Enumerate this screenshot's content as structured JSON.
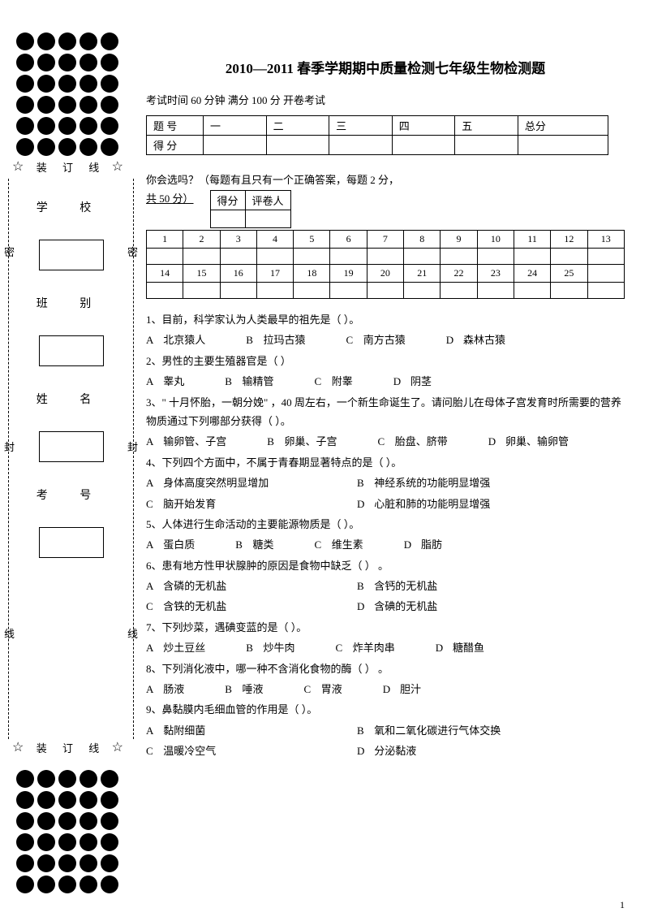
{
  "dots": {
    "rows": 6,
    "cols": 5
  },
  "binding": {
    "star": "☆",
    "text": "装  订  线"
  },
  "side": {
    "labels": [
      "学  校",
      "班  别",
      "姓  名",
      "考  号"
    ],
    "edge": {
      "mi": "密",
      "feng": "封",
      "xian": "线"
    }
  },
  "title": "2010—2011 春季学期期中质量检测七年级生物检测题",
  "exam_info": "考试时间 60  分钟  满分 100  分 开卷考试",
  "score_headers": [
    "题  号",
    "一",
    "二",
    "三",
    "四",
    "五",
    "总分"
  ],
  "score_row2": "得  分",
  "section_intro_l1": "你会选吗？（每题有且只有一个正确答案，每题      2 分，",
  "section_intro_l2": "共 50 分）",
  "subhead": [
    "得分",
    "评卷人"
  ],
  "ans_rows": [
    [
      "1",
      "2",
      "3",
      "4",
      "5",
      "6",
      "7",
      "8",
      "9",
      "10",
      "11",
      "12",
      "13"
    ],
    [
      "14",
      "15",
      "16",
      "17",
      "18",
      "19",
      "20",
      "21",
      "22",
      "23",
      "24",
      "25",
      ""
    ]
  ],
  "questions": [
    {
      "q": "1、目前，科学家认为人类最早的祖先是（        ）。",
      "opts": [
        [
          "A",
          "北京猿人"
        ],
        [
          "B",
          "拉玛古猿"
        ],
        [
          "C",
          "南方古猿"
        ],
        [
          "D",
          "森林古猿"
        ]
      ]
    },
    {
      "q": "2、男性的主要生殖器官是（        ）",
      "opts": [
        [
          "A",
          "睾丸"
        ],
        [
          "B",
          "输精管"
        ],
        [
          "C",
          "附睾"
        ],
        [
          "D",
          "阴茎"
        ]
      ]
    },
    {
      "q": "3、\" 十月怀胎，一朝分娩\" ，40 周左右，一个新生命诞生了。请问胎儿在母体子宫发育时所需要的营养物质通过下列哪部分获得（        ）。",
      "opts": [
        [
          "A",
          "输卵管、子宫"
        ],
        [
          "B",
          "卵巢、子宫"
        ],
        [
          "C",
          "胎盘、脐带"
        ],
        [
          "D",
          "卵巢、输卵管"
        ]
      ]
    },
    {
      "q": "4、下列四个方面中，不属于青春期显著特点的是（        ）。",
      "opts2": [
        [
          "A",
          "身体高度突然明显增加"
        ],
        [
          "B",
          "神经系统的功能明显增强"
        ],
        [
          "C",
          "脑开始发育"
        ],
        [
          "D",
          "心脏和肺的功能明显增强"
        ]
      ]
    },
    {
      "q": "5、人体进行生命活动的主要能源物质是（        ）。",
      "opts": [
        [
          "A",
          "蛋白质"
        ],
        [
          "B",
          "糖类"
        ],
        [
          "C",
          "维生素"
        ],
        [
          "D",
          "脂肪"
        ]
      ]
    },
    {
      "q": "6、患有地方性甲状腺肿的原因是食物中缺乏（        ） 。",
      "opts2": [
        [
          "A",
          "含磷的无机盐"
        ],
        [
          "B",
          "含钙的无机盐"
        ],
        [
          "C",
          "含铁的无机盐"
        ],
        [
          "D",
          "含碘的无机盐"
        ]
      ]
    },
    {
      "q": "7、下列炒菜，遇碘变蓝的是（        ）。",
      "opts": [
        [
          "A",
          "炒土豆丝"
        ],
        [
          "B",
          "炒牛肉"
        ],
        [
          "C",
          "炸羊肉串"
        ],
        [
          "D",
          "糖醋鱼"
        ]
      ]
    },
    {
      "q": "8、下列消化液中，哪一种不含消化食物的酶（        ） 。",
      "opts": [
        [
          "A",
          "肠液"
        ],
        [
          "B",
          "唾液"
        ],
        [
          "C",
          "胃液"
        ],
        [
          "D",
          "胆汁"
        ]
      ]
    },
    {
      "q": "9、鼻黏膜内毛细血管的作用是（        ）。",
      "opts2": [
        [
          "A",
          "黏附细菌"
        ],
        [
          "B",
          "氧和二氧化碳进行气体交换"
        ],
        [
          "C",
          "温暖冷空气"
        ],
        [
          "D",
          "分泌黏液"
        ]
      ]
    }
  ],
  "page_num": "1"
}
